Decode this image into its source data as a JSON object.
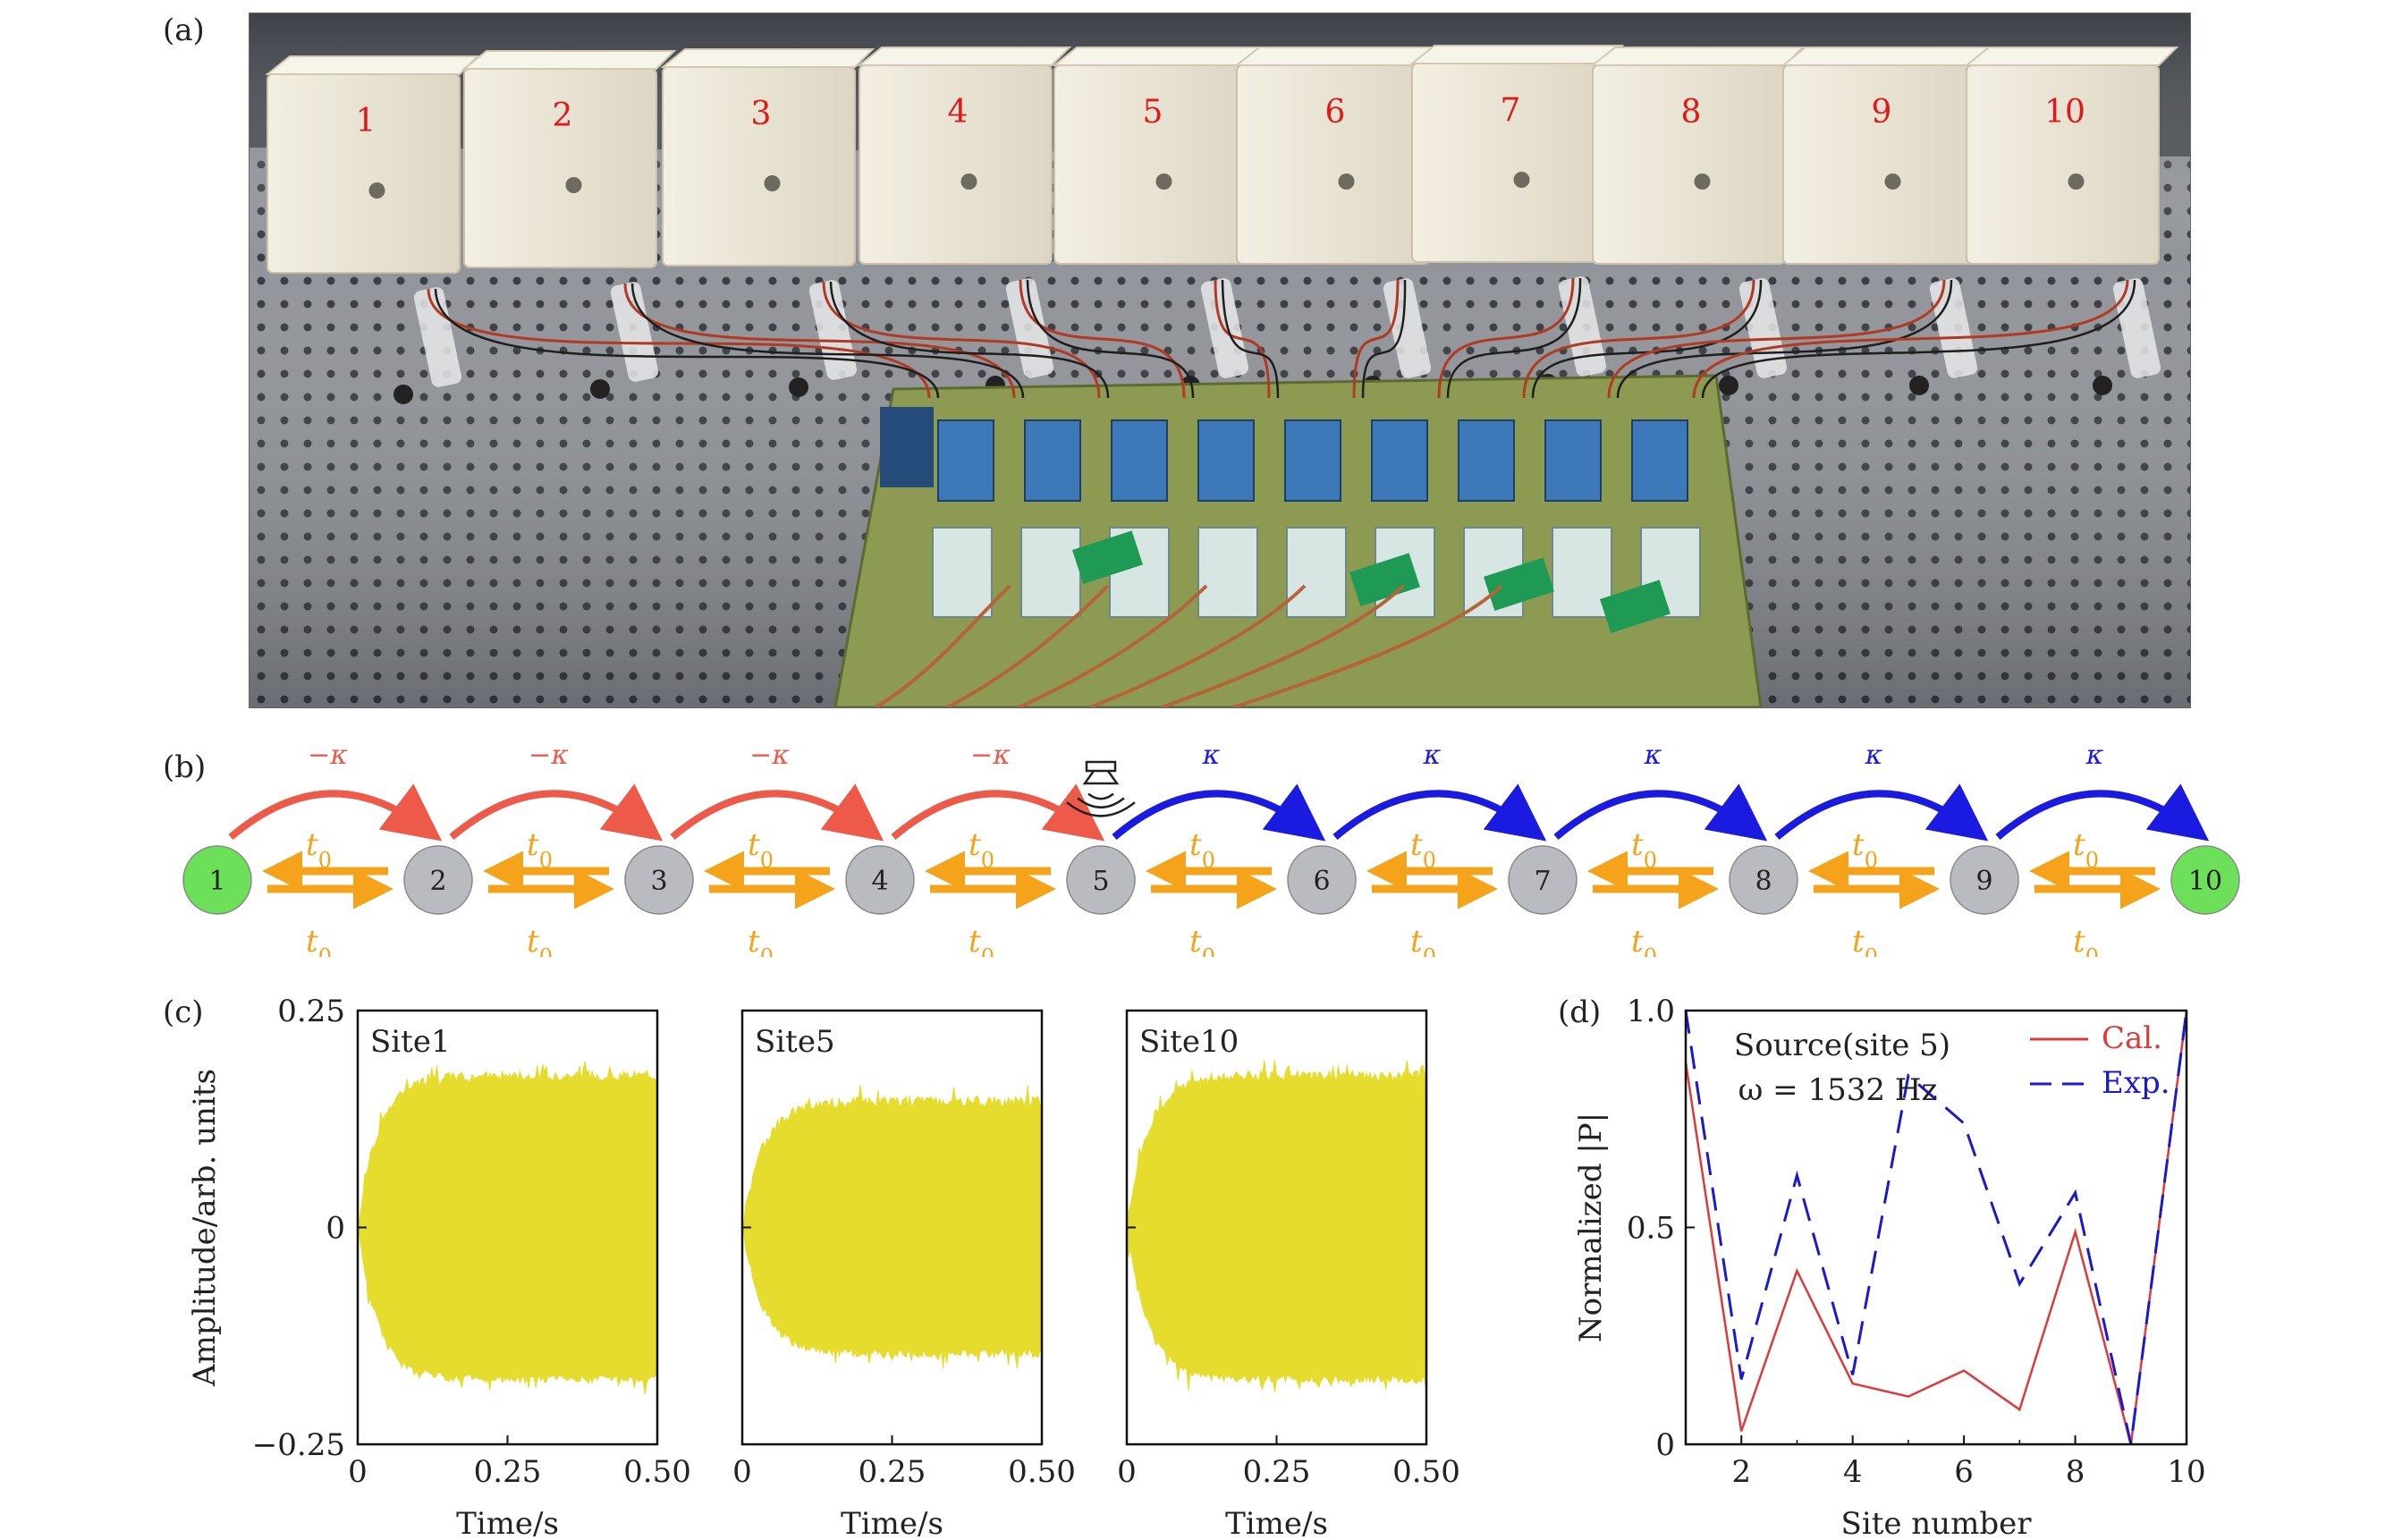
{
  "panels": {
    "a": "(a)",
    "b": "(b)",
    "c": "(c)",
    "d": "(d)"
  },
  "photo": {
    "box_numbers": [
      "1",
      "2",
      "3",
      "4",
      "5",
      "6",
      "7",
      "8",
      "9",
      "10"
    ]
  },
  "chain": {
    "sites": [
      "1",
      "2",
      "3",
      "4",
      "5",
      "6",
      "7",
      "8",
      "9",
      "10"
    ],
    "edge_site_color": "#6de05a",
    "bulk_site_color": "#b9bbc0",
    "neg_coupling_label": "−κ",
    "pos_coupling_label": "κ",
    "neg_color": "#ee5a4a",
    "pos_color": "#1a1ae0",
    "hopping_label": "t",
    "hopping_sub": "0",
    "hopping_color": "#f5a31a",
    "source_site_index": 4
  },
  "waveforms": [
    {
      "label": "Site1"
    },
    {
      "label": "Site5"
    },
    {
      "label": "Site10"
    }
  ],
  "waveform_axes": {
    "ylabel": "Amplitude/arb. units",
    "xlabel": "Time/s",
    "yticks": [
      "0.25",
      "0",
      "−0.25"
    ],
    "xticks": [
      "0",
      "0.25",
      "0.50"
    ],
    "fill_color": "#e6dc2e"
  },
  "chart_data": {
    "type": "line",
    "title": "",
    "annotation_line1": "Source(site 5)",
    "annotation_line2": "ω = 1532 Hz",
    "xlabel": "Site number",
    "ylabel": "Normalized |P|",
    "xlim": [
      1,
      10
    ],
    "ylim": [
      0,
      1.0
    ],
    "xticks": [
      "2",
      "4",
      "6",
      "8",
      "10"
    ],
    "yticks": [
      "0",
      "0.5",
      "1.0"
    ],
    "x": [
      1,
      2,
      3,
      4,
      5,
      6,
      7,
      8,
      9,
      10
    ],
    "series": [
      {
        "name": "Cal.",
        "color": "#dd3b3b",
        "style": "solid",
        "values": [
          0.88,
          0.03,
          0.4,
          0.14,
          0.11,
          0.17,
          0.08,
          0.49,
          0.0,
          1.0
        ]
      },
      {
        "name": "Exp.",
        "color": "#1a1acc",
        "style": "dashed",
        "values": [
          1.0,
          0.15,
          0.62,
          0.16,
          0.85,
          0.74,
          0.37,
          0.58,
          0.0,
          1.0
        ]
      }
    ],
    "legend_position": "top-right"
  }
}
